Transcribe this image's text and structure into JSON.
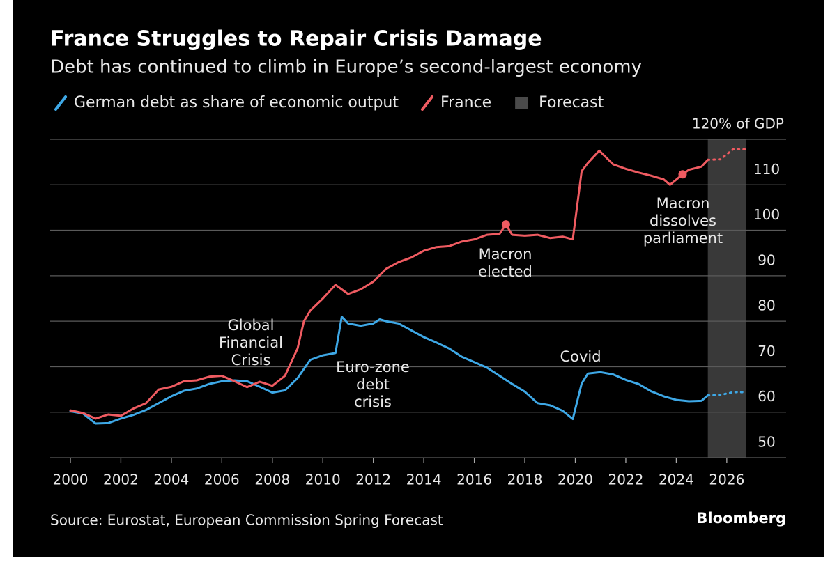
{
  "chart_data": {
    "type": "line",
    "title": "France Struggles to Repair Crisis Damage",
    "subtitle": "Debt has continued to climb in Europe’s second-largest economy",
    "source": "Source: Eurostat, European Commission Spring Forecast",
    "brand": "Bloomberg",
    "xlim": [
      1999.2,
      2028.35
    ],
    "xticks": [
      2000,
      2002,
      2004,
      2006,
      2008,
      2010,
      2012,
      2014,
      2016,
      2018,
      2020,
      2022,
      2024,
      2026
    ],
    "ylim": [
      50,
      120
    ],
    "yticks": [
      50,
      60,
      70,
      80,
      90,
      100,
      110,
      {
        "value": 120,
        "label": "120% of GDP"
      }
    ],
    "grid": true,
    "forecast": {
      "label": "Forecast",
      "span": [
        2025.25,
        2026.75
      ],
      "color": "#393939"
    },
    "series": [
      {
        "name": "German debt as share of economic output",
        "color": "#3ea8e6",
        "x": [
          2000,
          2000.5,
          2001,
          2001.5,
          2002,
          2002.5,
          2003,
          2003.5,
          2004,
          2004.5,
          2005,
          2005.5,
          2006,
          2006.5,
          2007,
          2007.5,
          2008,
          2008.5,
          2009,
          2009.5,
          2010,
          2010.5,
          2010.75,
          2011,
          2011.5,
          2012,
          2012.25,
          2012.5,
          2013,
          2013.5,
          2014,
          2014.5,
          2015,
          2015.5,
          2016,
          2016.5,
          2017,
          2017.5,
          2018,
          2018.5,
          2019,
          2019.5,
          2019.9,
          2020.25,
          2020.5,
          2021,
          2021.5,
          2022,
          2022.5,
          2023,
          2023.5,
          2024,
          2024.5,
          2025,
          2025.25,
          2025.75,
          2026.25,
          2026.75
        ],
        "values": [
          60.2,
          59.7,
          57.5,
          57.6,
          58.6,
          59.4,
          60.5,
          62,
          63.5,
          64.7,
          65.2,
          66.2,
          66.8,
          67,
          66.8,
          65.6,
          64.3,
          64.8,
          67.5,
          71.5,
          72.5,
          73,
          81,
          79.5,
          79,
          79.5,
          80.4,
          80,
          79.5,
          78,
          76.5,
          75.3,
          74,
          72.2,
          71,
          69.8,
          68,
          66.2,
          64.5,
          62,
          61.5,
          60.3,
          58.5,
          66.3,
          68.5,
          68.8,
          68.3,
          67.1,
          66.2,
          64.6,
          63.5,
          62.7,
          62.4,
          62.5,
          63.7,
          63.8,
          64.4,
          64.4
        ]
      },
      {
        "name": "France",
        "color": "#ef5b61",
        "x": [
          2000,
          2000.5,
          2001,
          2001.5,
          2002,
          2002.5,
          2003,
          2003.5,
          2004,
          2004.5,
          2005,
          2005.5,
          2006,
          2006.5,
          2007,
          2007.5,
          2008,
          2008.5,
          2009,
          2009.25,
          2009.5,
          2010,
          2010.5,
          2011,
          2011.5,
          2012,
          2012.5,
          2013,
          2013.5,
          2014,
          2014.5,
          2015,
          2015.5,
          2016,
          2016.5,
          2017,
          2017.25,
          2017.5,
          2018,
          2018.5,
          2019,
          2019.5,
          2019.9,
          2020.25,
          2020.5,
          2020.95,
          2021.5,
          2022,
          2022.5,
          2023,
          2023.5,
          2023.75,
          2024.25,
          2024.5,
          2025,
          2025.25,
          2025.75,
          2026.25,
          2026.75
        ],
        "values": [
          60.4,
          59.8,
          58.6,
          59.5,
          59.2,
          60.8,
          62,
          65,
          65.6,
          66.8,
          67,
          67.8,
          68,
          66.8,
          65.5,
          66.7,
          65.8,
          68,
          74,
          80,
          82.3,
          85,
          88,
          86,
          87,
          88.7,
          91.5,
          93,
          94,
          95.5,
          96.3,
          96.5,
          97.5,
          98,
          99,
          99.2,
          101.3,
          99,
          98.8,
          99,
          98.3,
          98.6,
          98,
          113,
          114.8,
          117.5,
          114.5,
          113.5,
          112.7,
          112,
          111.2,
          110,
          112.3,
          113.3,
          114,
          115.5,
          115.6,
          117.8,
          117.8
        ]
      }
    ],
    "annotations": [
      {
        "lines": [
          "Global",
          "Financial",
          "Crisis"
        ]
      },
      {
        "lines": [
          "Euro-zone",
          "debt",
          "crisis"
        ]
      },
      {
        "lines": [
          "Macron",
          "elected"
        ],
        "x": 2017.25
      },
      {
        "lines": [
          "Covid"
        ]
      },
      {
        "lines": [
          "Macron",
          "dissolves",
          "parliament"
        ],
        "x": 2024.25
      }
    ]
  }
}
